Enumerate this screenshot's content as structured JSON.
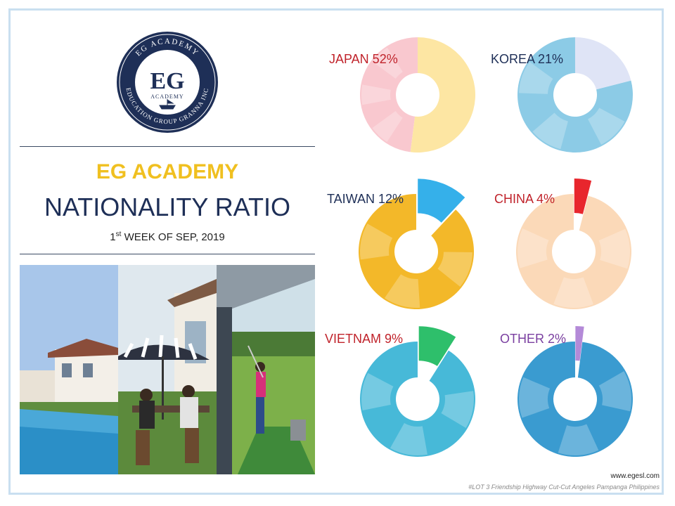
{
  "header": {
    "logo_top_text": "EG ACADEMY",
    "logo_monogram": "EG",
    "logo_sub": "ACADEMY",
    "logo_ring_text": "EDUCATION GROUP GRANNA INC",
    "title_brand": "EG ACADEMY",
    "title_main": "NATIONALITY RATIO",
    "subtitle_pre": "1",
    "subtitle_sup": "st",
    "subtitle_post": " WEEK OF SEP, 2019"
  },
  "footer": {
    "website": "www.egesl.com",
    "address": "#LOT 3 Friendship Highway Cut-Cut Angeles Pampanga Philippines"
  },
  "colors": {
    "label_red": "#c0232b",
    "label_navy": "#1e2f57",
    "label_purple": "#7a3fa0",
    "frame": "#c9dff0"
  },
  "chart_data": {
    "type": "pie",
    "unit": "%",
    "items": [
      {
        "label": "JAPAN 52%",
        "name": "JAPAN",
        "value": 52,
        "label_color": "#c0232b",
        "highlight": "#fde6a3",
        "base": "#f9c8cf"
      },
      {
        "label": "KOREA 21%",
        "name": "KOREA",
        "value": 21,
        "label_color": "#1e2f57",
        "highlight": "#dfe4f6",
        "base": "#8ccbe6"
      },
      {
        "label": "TAIWAN 12%",
        "name": "TAIWAN",
        "value": 12,
        "label_color": "#1e2f57",
        "highlight": "#35b0ea",
        "base": "#f3b829"
      },
      {
        "label": "CHINA 4%",
        "name": "CHINA",
        "value": 4,
        "label_color": "#c0232b",
        "highlight": "#e8262d",
        "base": "#fbd9b8"
      },
      {
        "label": "VIETNAM 9%",
        "name": "VIETNAM",
        "value": 9,
        "label_color": "#c0232b",
        "highlight": "#2ebf6b",
        "base": "#47b9d8"
      },
      {
        "label": "OTHER 2%",
        "name": "OTHER",
        "value": 2,
        "label_color": "#7a3fa0",
        "highlight": "#b48ad8",
        "base": "#3a9bd0"
      }
    ]
  }
}
